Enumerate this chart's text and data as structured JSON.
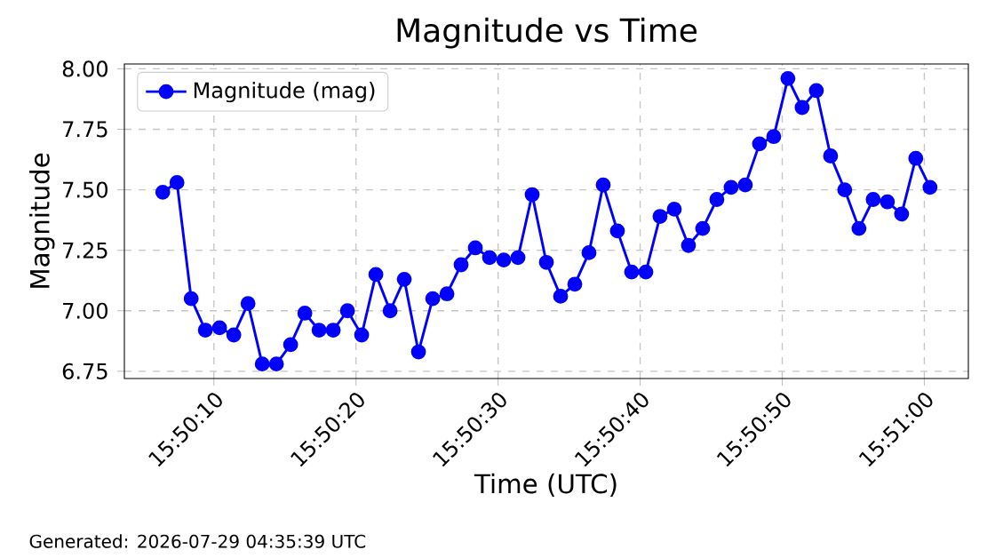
{
  "chart_data": {
    "type": "line",
    "title": "Magnitude vs Time",
    "xlabel": "Time (UTC)",
    "ylabel": "Magnitude",
    "annotations": [
      "Generated: 2026-07-29 04:35:39 UTC"
    ],
    "x": [
      15.835111,
      15.835389,
      15.835667,
      15.835944,
      15.836222,
      15.8365,
      15.836778,
      15.837056,
      15.837333,
      15.837611,
      15.837889,
      15.838167,
      15.838444,
      15.838722,
      15.839,
      15.839278,
      15.839556,
      15.839833,
      15.840111,
      15.840389,
      15.840667,
      15.840944,
      15.841222,
      15.8415,
      15.841778,
      15.842056,
      15.842333,
      15.842611,
      15.842889,
      15.843167,
      15.843444,
      15.843722,
      15.844,
      15.844278,
      15.844556,
      15.844833,
      15.845111,
      15.845389,
      15.845667,
      15.845944,
      15.846222,
      15.8465,
      15.846778,
      15.847056,
      15.847333,
      15.847611,
      15.847889,
      15.848167,
      15.848444,
      15.848722,
      15.849,
      15.849278,
      15.849556,
      15.849833,
      15.850111
    ],
    "series": [
      {
        "name": "Magnitude (mag)",
        "color": "#0000ff",
        "values": [
          7.49,
          7.53,
          7.05,
          6.92,
          6.93,
          6.9,
          7.03,
          6.78,
          6.78,
          6.86,
          6.99,
          6.92,
          6.92,
          7.0,
          6.9,
          7.15,
          7.0,
          7.13,
          6.83,
          7.05,
          7.07,
          7.19,
          7.26,
          7.22,
          7.21,
          7.22,
          7.48,
          7.2,
          7.06,
          7.11,
          7.24,
          7.52,
          7.33,
          7.16,
          7.16,
          7.39,
          7.42,
          7.27,
          7.34,
          7.46,
          7.51,
          7.52,
          7.69,
          7.72,
          7.96,
          7.84,
          7.91,
          7.64,
          7.5,
          7.34,
          7.46,
          7.45,
          7.4,
          7.63,
          7.51
        ]
      }
    ],
    "xlim": [
      15.834361,
      15.850861
    ],
    "xticks": [
      {
        "value": 15.836111,
        "label": "15:50:10"
      },
      {
        "value": 15.838889,
        "label": "15:50:20"
      },
      {
        "value": 15.841667,
        "label": "15:50:30"
      },
      {
        "value": 15.844444,
        "label": "15:50:40"
      },
      {
        "value": 15.847222,
        "label": "15:50:50"
      },
      {
        "value": 15.85,
        "label": "15:51:00"
      }
    ],
    "ylim": [
      6.72,
      8.02
    ],
    "yticks": [
      6.75,
      {
        "value": 7.0,
        "label": "7.00"
      },
      7.25,
      {
        "value": 7.5,
        "label": "7.50"
      },
      7.75,
      {
        "value": 8.0,
        "label": "8.00"
      }
    ],
    "grid": true,
    "legend": "top left",
    "marker": "circle",
    "line_style": "solid"
  }
}
